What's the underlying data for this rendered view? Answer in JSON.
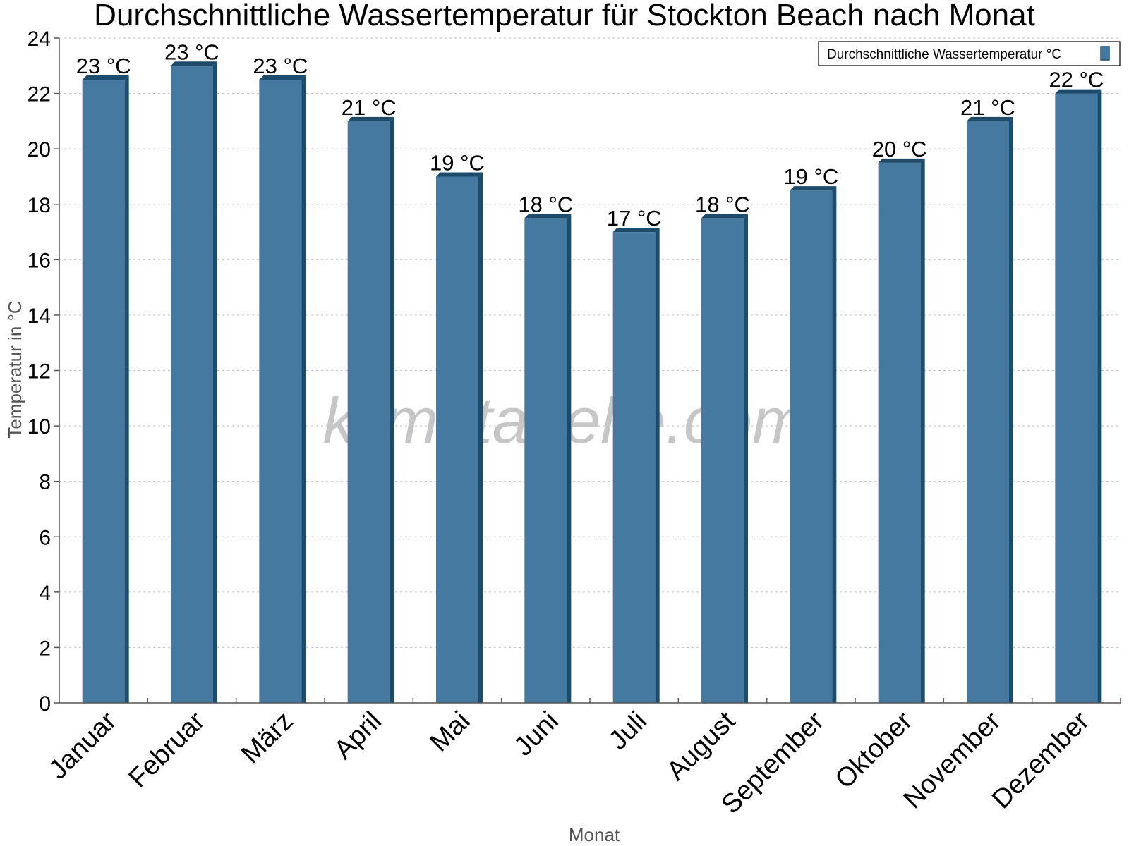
{
  "chart_data": {
    "type": "bar",
    "title": "Durchschnittliche Wassertemperatur für Stockton Beach nach Monat",
    "xlabel": "Monat",
    "ylabel": "Temperatur in °C",
    "ylim": [
      0,
      24
    ],
    "yticks": [
      0,
      2,
      4,
      6,
      8,
      10,
      12,
      14,
      16,
      18,
      20,
      22,
      24
    ],
    "grid": true,
    "legend_position": "top-right",
    "categories": [
      "Januar",
      "Februar",
      "März",
      "April",
      "Mai",
      "Juni",
      "Juli",
      "August",
      "September",
      "Oktober",
      "November",
      "Dezember"
    ],
    "series": [
      {
        "name": "Durchschnittliche Wassertemperatur °C",
        "values": [
          22.5,
          23,
          22.5,
          21,
          19,
          17.5,
          17,
          17.5,
          18.5,
          19.5,
          21,
          22
        ],
        "data_labels": [
          "23 °C",
          "23 °C",
          "23 °C",
          "21 °C",
          "19 °C",
          "18 °C",
          "17 °C",
          "18 °C",
          "19 °C",
          "20 °C",
          "21 °C",
          "22 °C"
        ],
        "color": "#4579a0",
        "edge_color": "#1d4b6b"
      }
    ],
    "watermark": "klimatabelle.com"
  }
}
